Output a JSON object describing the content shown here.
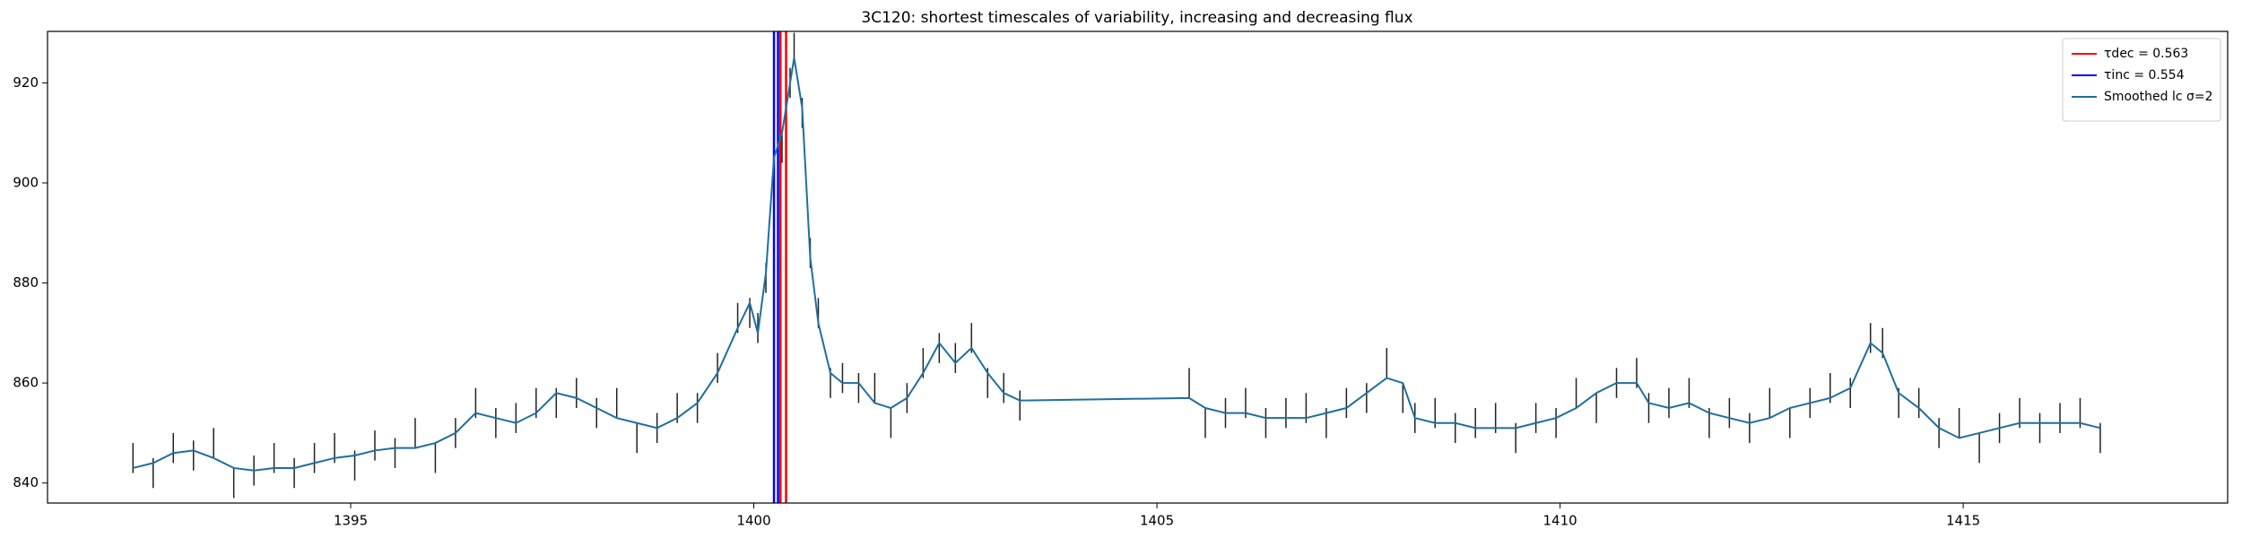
{
  "chart_data": {
    "type": "line",
    "title": "3C120: shortest timescales of variability, increasing and decreasing flux",
    "x": [
      1392.3,
      1392.55,
      1392.8,
      1393.05,
      1393.3,
      1393.55,
      1393.8,
      1394.05,
      1394.3,
      1394.55,
      1394.8,
      1395.05,
      1395.3,
      1395.55,
      1395.8,
      1396.05,
      1396.3,
      1396.55,
      1396.8,
      1397.05,
      1397.3,
      1397.55,
      1397.8,
      1398.05,
      1398.3,
      1398.55,
      1398.8,
      1399.05,
      1399.3,
      1399.55,
      1399.8,
      1399.95,
      1400.05,
      1400.15,
      1400.25,
      1400.35,
      1400.45,
      1400.5,
      1400.6,
      1400.7,
      1400.8,
      1400.95,
      1401.1,
      1401.3,
      1401.5,
      1401.7,
      1401.9,
      1402.1,
      1402.3,
      1402.5,
      1402.7,
      1402.9,
      1403.1,
      1403.3,
      1405.4,
      1405.6,
      1405.85,
      1406.1,
      1406.35,
      1406.6,
      1406.85,
      1407.1,
      1407.35,
      1407.6,
      1407.85,
      1408.05,
      1408.2,
      1408.45,
      1408.7,
      1408.95,
      1409.2,
      1409.45,
      1409.7,
      1409.95,
      1410.2,
      1410.45,
      1410.7,
      1410.95,
      1411.1,
      1411.35,
      1411.6,
      1411.85,
      1412.1,
      1412.35,
      1412.6,
      1412.85,
      1413.1,
      1413.35,
      1413.6,
      1413.85,
      1414.0,
      1414.2,
      1414.45,
      1414.7,
      1414.95,
      1415.2,
      1415.45,
      1415.7,
      1415.95,
      1416.2,
      1416.45,
      1416.7
    ],
    "errorbars": {
      "color": "#222222",
      "values": [
        845,
        842,
        847,
        845.5,
        848,
        840,
        842.5,
        845,
        842,
        845,
        847,
        843.5,
        847.5,
        846,
        850,
        845,
        850,
        856,
        852,
        853,
        856,
        856,
        858,
        854,
        856,
        849,
        851,
        855,
        855,
        863,
        873,
        874,
        871,
        881,
        908,
        907,
        920,
        927,
        914,
        886,
        874,
        860,
        861,
        859,
        859,
        852,
        857,
        864,
        867,
        865,
        869,
        860,
        859,
        855.5,
        860,
        852,
        854,
        856,
        852,
        854,
        855,
        852,
        856,
        857,
        864,
        857,
        853,
        854,
        851,
        852,
        853,
        849,
        853,
        852,
        858,
        855,
        860,
        862,
        855,
        856,
        858,
        852,
        854,
        851,
        856,
        852,
        856,
        859,
        858,
        869,
        868,
        856,
        856,
        850,
        852,
        847,
        851,
        854,
        851,
        853,
        854,
        849
      ],
      "errors": [
        3,
        3,
        3,
        3,
        3,
        3,
        3,
        3,
        3,
        3,
        3,
        3,
        3,
        3,
        3,
        3,
        3,
        3,
        3,
        3,
        3,
        3,
        3,
        3,
        3,
        3,
        3,
        3,
        3,
        3,
        3,
        3,
        3,
        3,
        3,
        3,
        3,
        3,
        3,
        3,
        3,
        3,
        3,
        3,
        3,
        3,
        3,
        3,
        3,
        3,
        3,
        3,
        3,
        3,
        3,
        3,
        3,
        3,
        3,
        3,
        3,
        3,
        3,
        3,
        3,
        3,
        3,
        3,
        3,
        3,
        3,
        3,
        3,
        3,
        3,
        3,
        3,
        3,
        3,
        3,
        3,
        3,
        3,
        3,
        3,
        3,
        3,
        3,
        3,
        3,
        3,
        3,
        3,
        3,
        3,
        3,
        3,
        3,
        3,
        3,
        3,
        3
      ]
    },
    "series": [
      {
        "name": "τdec = 0.563",
        "color": "#ff0000",
        "vlines": [
          1400.33,
          1400.4
        ]
      },
      {
        "name": "τinc = 0.554",
        "color": "#0000ff",
        "vlines": [
          1400.25,
          1400.3
        ]
      },
      {
        "name": "Smoothed lc σ=2",
        "color": "#1f6f9f",
        "values": [
          843,
          844,
          846,
          846.5,
          845,
          843,
          842.5,
          843,
          843,
          844,
          845,
          845.5,
          846.5,
          847,
          847,
          848,
          850,
          854,
          853,
          852,
          854,
          858,
          857,
          855,
          853,
          852,
          851,
          853,
          856,
          862,
          871,
          876,
          870,
          882,
          905,
          910,
          920,
          925,
          915,
          885,
          872,
          862,
          860,
          860,
          856,
          855,
          857,
          862,
          868,
          864,
          867,
          862,
          858,
          856.5,
          857,
          855,
          854,
          854,
          853,
          853,
          853,
          854,
          855,
          858,
          861,
          860,
          853,
          852,
          852,
          851,
          851,
          851,
          852,
          853,
          855,
          858,
          860,
          860,
          856,
          855,
          856,
          854,
          853,
          852,
          853,
          855,
          856,
          857,
          859,
          868,
          866,
          858,
          855,
          851,
          849,
          850,
          851,
          852,
          852,
          852,
          852,
          851
        ]
      }
    ],
    "xlim": [
      1391.24,
      1418.28
    ],
    "ylim": [
      836,
      930.3
    ],
    "xticks": [
      1395,
      1400,
      1405,
      1410,
      1415
    ],
    "yticks": [
      840,
      860,
      880,
      900,
      920
    ],
    "grid": false,
    "legend": "upper right"
  }
}
